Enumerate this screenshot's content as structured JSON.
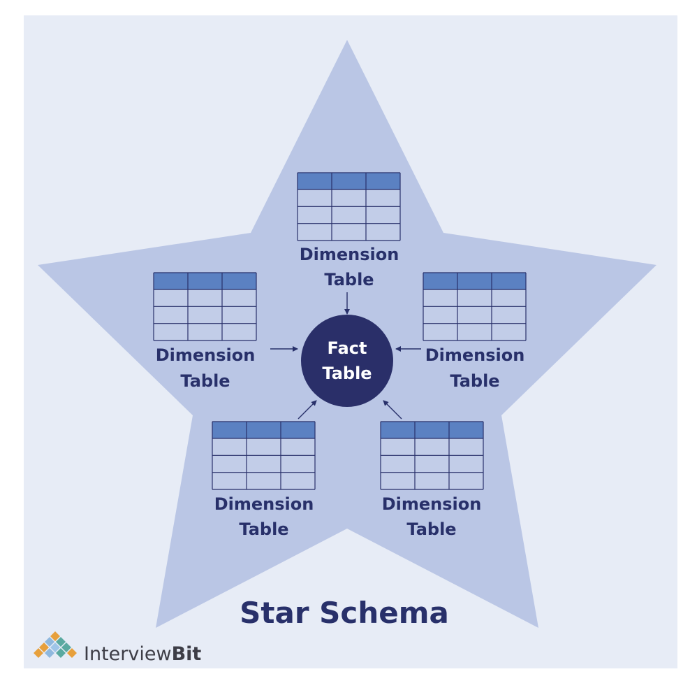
{
  "title": "Star Schema",
  "fact": {
    "line1": "Fact",
    "line2": "Table"
  },
  "dimensions": [
    {
      "line1": "Dimension",
      "line2": "Table"
    },
    {
      "line1": "Dimension",
      "line2": "Table"
    },
    {
      "line1": "Dimension",
      "line2": "Table"
    },
    {
      "line1": "Dimension",
      "line2": "Table"
    },
    {
      "line1": "Dimension",
      "line2": "Table"
    }
  ],
  "brand": {
    "part1": "Interview",
    "part2": "Bit"
  },
  "colors": {
    "background": "#e7ecf6",
    "star": "#bac6e5",
    "table_header": "#5b81c2",
    "table_body": "#c2cde8",
    "table_lines": "#28306a",
    "fact_circle": "#2a2f69",
    "label_text": "#28306a"
  }
}
